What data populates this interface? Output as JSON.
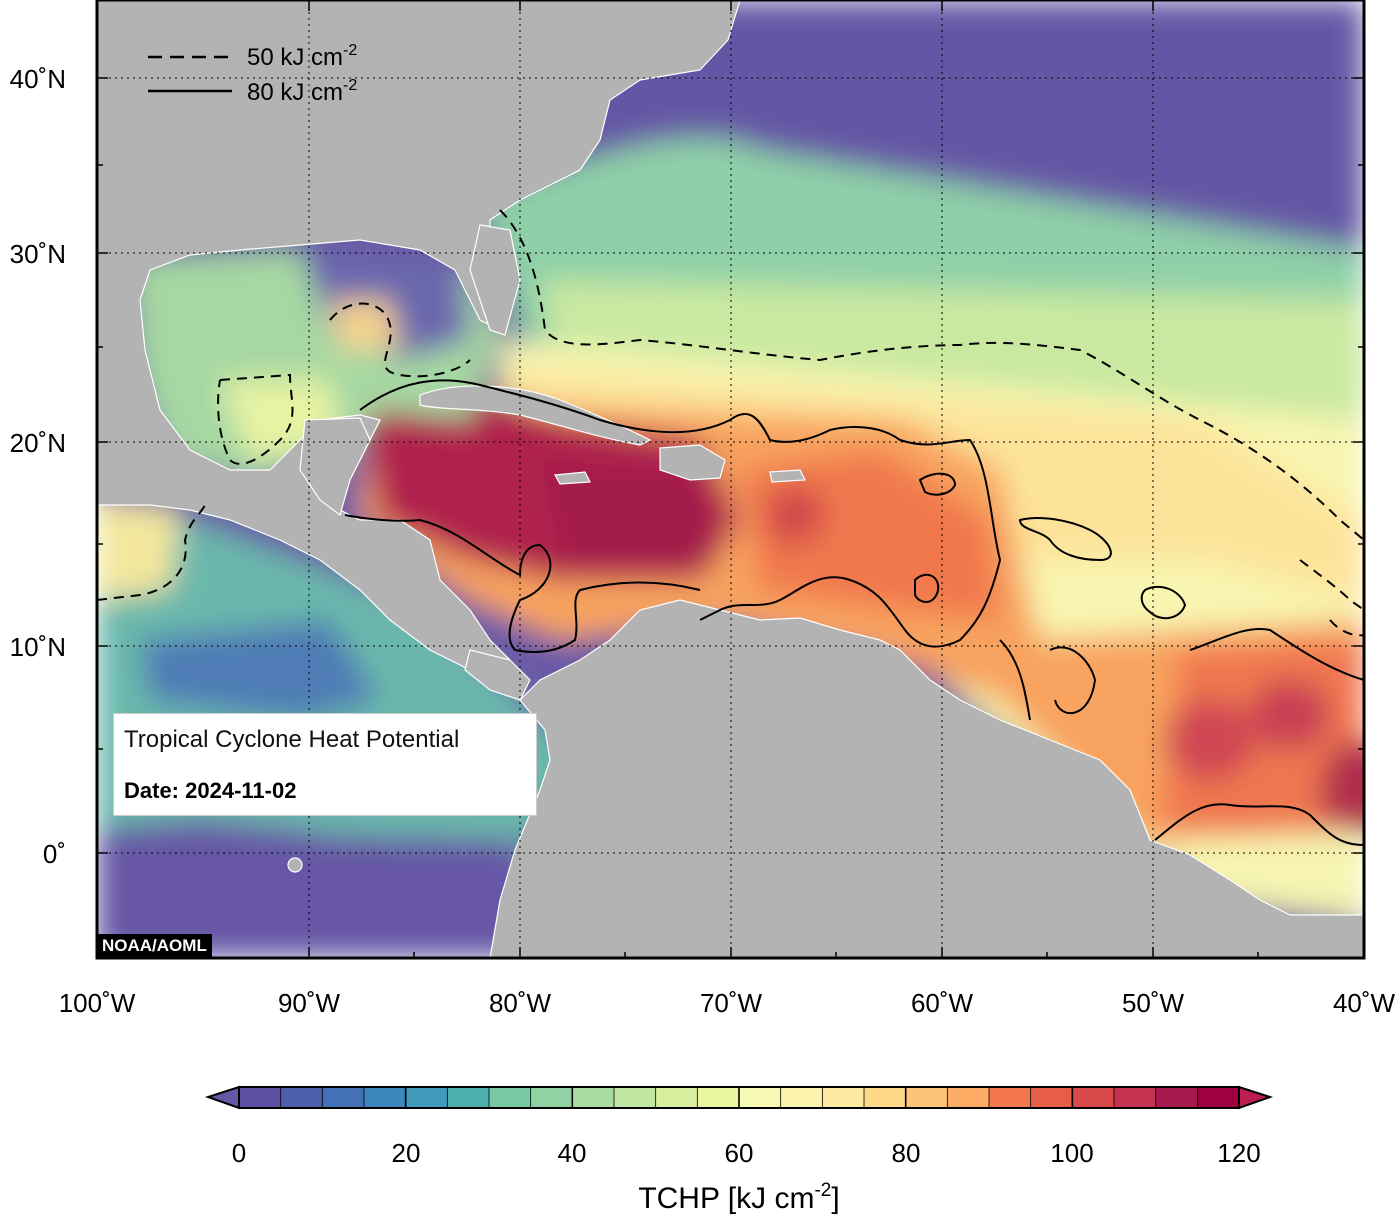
{
  "map": {
    "lat_ticks": [
      "40˚N",
      "30˚N",
      "20˚N",
      "10˚N",
      "0˚"
    ],
    "lon_ticks": [
      "100˚W",
      "90˚W",
      "80˚W",
      "70˚W",
      "60˚W",
      "50˚W",
      "40˚W"
    ],
    "land_color": "#b3b3b3",
    "coastline_color": "#ffffff"
  },
  "legend": {
    "dashed_label": "50 kJ cm",
    "solid_label": "80 kJ cm",
    "unit_superscript": "-2"
  },
  "info_box": {
    "title": "Tropical Cyclone Heat Potential",
    "date": "Date: 2024-11-02"
  },
  "credit": "NOAA/AOML",
  "colorbar": {
    "title": "TCHP [kJ cm",
    "title_superscript": "-2",
    "title_suffix": "]",
    "tick_labels": [
      "0",
      "20",
      "40",
      "60",
      "80",
      "100",
      "120"
    ],
    "range": [
      0,
      120
    ],
    "step": 5,
    "colors": [
      "#5e50a2",
      "#4a5fac",
      "#4271b5",
      "#3b86bc",
      "#3f9abb",
      "#4daeae",
      "#5fbfa4",
      "#77c9a4",
      "#90d2a4",
      "#a9dda3",
      "#c1e6a1",
      "#d7ee9e",
      "#e9f59f",
      "#f5f9b1",
      "#fdf4b0",
      "#fee9a0",
      "#fed98a",
      "#fdc477",
      "#fcac64",
      "#f89256",
      "#f2784b",
      "#e75e46",
      "#d84a4a",
      "#c43350",
      "#a51b4f",
      "#9e0142"
    ]
  }
}
